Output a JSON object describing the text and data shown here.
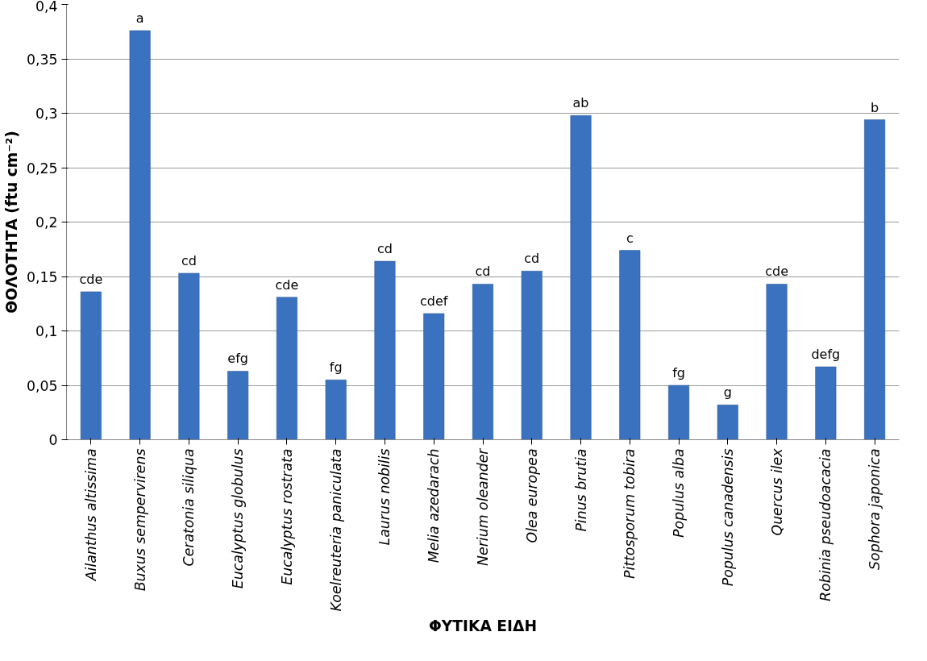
{
  "chart_data": {
    "type": "bar",
    "xlabel": "ΦΥΤΙΚΑ ΕΙΔΗ",
    "ylabel": "ΘΟΛΟΤΗΤΑ (ftu cm⁻²)",
    "categories": [
      "Ailanthus altissima",
      "Buxus sempervirens",
      "Ceratonia siliqua",
      "Eucalyptus globulus",
      "Eucalyptus rostrata",
      "Koelreuteria paniculata",
      "Laurus nobilis",
      "Melia azedarach",
      "Nerium oleander",
      "Olea europea",
      "Pinus brutia",
      "Pittosporum tobira",
      "Populus alba",
      "Populus canadensis",
      "Quercus ilex",
      "Robinia pseudoacacia",
      "Sophora japonica"
    ],
    "values": [
      0.136,
      0.376,
      0.153,
      0.063,
      0.131,
      0.055,
      0.164,
      0.116,
      0.143,
      0.155,
      0.298,
      0.174,
      0.05,
      0.032,
      0.143,
      0.067,
      0.294
    ],
    "color": "#3a72c0",
    "ylim": [
      0,
      0.4
    ],
    "yticks": [
      0,
      {
        "value": 0.05,
        "label": "0,05"
      },
      {
        "value": 0.1,
        "label": "0,1"
      },
      {
        "value": 0.15,
        "label": "0,15"
      },
      {
        "value": 0.2,
        "label": "0,2"
      },
      {
        "value": 0.25,
        "label": "0,25"
      },
      {
        "value": 0.3,
        "label": "0,3"
      },
      {
        "value": 0.35,
        "label": "0,35"
      },
      {
        "value": 0.4,
        "label": "0,4"
      }
    ],
    "grid": "y",
    "annotations": [
      {
        "text": "cde",
        "x": "Ailanthus altissima",
        "y": 0.136
      },
      {
        "text": "a",
        "x": "Buxus sempervirens",
        "y": 0.376
      },
      {
        "text": "cd",
        "x": "Ceratonia siliqua",
        "y": 0.153
      },
      {
        "text": "efg",
        "x": "Eucalyptus globulus",
        "y": 0.063
      },
      {
        "text": "cde",
        "x": "Eucalyptus rostrata",
        "y": 0.131
      },
      {
        "text": "fg",
        "x": "Koelreuteria paniculata",
        "y": 0.055
      },
      {
        "text": "cd",
        "x": "Laurus nobilis",
        "y": 0.164
      },
      {
        "text": "cdef",
        "x": "Melia azedarach",
        "y": 0.116
      },
      {
        "text": "cd",
        "x": "Nerium oleander",
        "y": 0.143
      },
      {
        "text": "cd",
        "x": "Olea europea",
        "y": 0.155
      },
      {
        "text": "ab",
        "x": "Pinus brutia",
        "y": 0.298
      },
      {
        "text": "c",
        "x": "Pittosporum tobira",
        "y": 0.174
      },
      {
        "text": "fg",
        "x": "Populus alba",
        "y": 0.05
      },
      {
        "text": "g",
        "x": "Populus canadensis",
        "y": 0.032
      },
      {
        "text": "cde",
        "x": "Quercus ilex",
        "y": 0.143
      },
      {
        "text": "defg",
        "x": "Robinia pseudoacacia",
        "y": 0.067
      },
      {
        "text": "b",
        "x": "Sophora japonica",
        "y": 0.294
      }
    ]
  }
}
